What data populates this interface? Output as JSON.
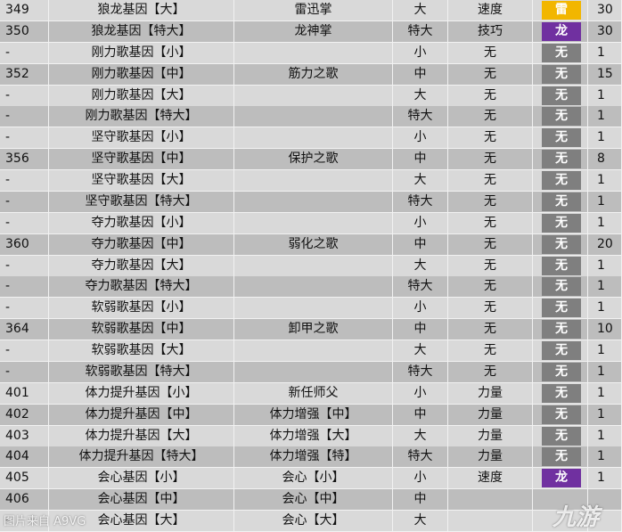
{
  "table": {
    "element_colors": {
      "雷": "#f2b600",
      "龙": "#7030a0",
      "无": "#7f7f7f"
    },
    "rows": [
      {
        "id": 349,
        "gene": "狼龙基因【大】",
        "skill": "雷迅掌",
        "size": "大",
        "type": "速度",
        "element": "雷",
        "value": 30
      },
      {
        "id": 350,
        "gene": "狼龙基因【特大】",
        "skill": "龙神掌",
        "size": "特大",
        "type": "技巧",
        "element": "龙",
        "value": 30
      },
      {
        "id": "-",
        "gene": "刚力歌基因【小】",
        "skill": null,
        "size": "小",
        "type": "无",
        "element": "无",
        "value": 1
      },
      {
        "id": 352,
        "gene": "刚力歌基因【中】",
        "skill": "筋力之歌",
        "size": "中",
        "type": "无",
        "element": "无",
        "value": 15
      },
      {
        "id": "-",
        "gene": "刚力歌基因【大】",
        "skill": null,
        "size": "大",
        "type": "无",
        "element": "无",
        "value": 1
      },
      {
        "id": "-",
        "gene": "刚力歌基因【特大】",
        "skill": null,
        "size": "特大",
        "type": "无",
        "element": "无",
        "value": 1
      },
      {
        "id": "-",
        "gene": "坚守歌基因【小】",
        "skill": null,
        "size": "小",
        "type": "无",
        "element": "无",
        "value": 1
      },
      {
        "id": 356,
        "gene": "坚守歌基因【中】",
        "skill": "保护之歌",
        "size": "中",
        "type": "无",
        "element": "无",
        "value": 8
      },
      {
        "id": "-",
        "gene": "坚守歌基因【大】",
        "skill": null,
        "size": "大",
        "type": "无",
        "element": "无",
        "value": 1
      },
      {
        "id": "-",
        "gene": "坚守歌基因【特大】",
        "skill": null,
        "size": "特大",
        "type": "无",
        "element": "无",
        "value": 1
      },
      {
        "id": "-",
        "gene": "夺力歌基因【小】",
        "skill": null,
        "size": "小",
        "type": "无",
        "element": "无",
        "value": 1
      },
      {
        "id": 360,
        "gene": "夺力歌基因【中】",
        "skill": "弱化之歌",
        "size": "中",
        "type": "无",
        "element": "无",
        "value": 20
      },
      {
        "id": "-",
        "gene": "夺力歌基因【大】",
        "skill": null,
        "size": "大",
        "type": "无",
        "element": "无",
        "value": 1
      },
      {
        "id": "-",
        "gene": "夺力歌基因【特大】",
        "skill": null,
        "size": "特大",
        "type": "无",
        "element": "无",
        "value": 1
      },
      {
        "id": "-",
        "gene": "软弱歌基因【小】",
        "skill": null,
        "size": "小",
        "type": "无",
        "element": "无",
        "value": 1
      },
      {
        "id": 364,
        "gene": "软弱歌基因【中】",
        "skill": "卸甲之歌",
        "size": "中",
        "type": "无",
        "element": "无",
        "value": 10
      },
      {
        "id": "-",
        "gene": "软弱歌基因【大】",
        "skill": null,
        "size": "大",
        "type": "无",
        "element": "无",
        "value": 1
      },
      {
        "id": "-",
        "gene": "软弱歌基因【特大】",
        "skill": null,
        "size": "特大",
        "type": "无",
        "element": "无",
        "value": 1
      },
      {
        "id": 401,
        "gene": "体力提升基因【小】",
        "skill": "新任师父",
        "size": "小",
        "type": "力量",
        "element": "无",
        "value": 1
      },
      {
        "id": 402,
        "gene": "体力提升基因【中】",
        "skill": "体力增强【中】",
        "size": "中",
        "type": "力量",
        "element": "无",
        "value": 1
      },
      {
        "id": 403,
        "gene": "体力提升基因【大】",
        "skill": "体力增强【大】",
        "size": "大",
        "type": "力量",
        "element": "无",
        "value": 1
      },
      {
        "id": 404,
        "gene": "体力提升基因【特大】",
        "skill": "体力增强【特】",
        "size": "特大",
        "type": "力量",
        "element": "无",
        "value": 1
      },
      {
        "id": 405,
        "gene": "会心基因【小】",
        "skill": "会心【小】",
        "size": "小",
        "type": "速度",
        "element": "龙",
        "value": 1
      },
      {
        "id": 406,
        "gene": "会心基因【中】",
        "skill": "会心【中】",
        "size": "中",
        "type": null,
        "element": null,
        "value": null
      },
      {
        "id": "-",
        "gene": "会心基因【大】",
        "skill": "会心【大】",
        "size": "大",
        "type": null,
        "element": null,
        "value": null
      }
    ]
  },
  "watermark": {
    "source": "图片来自 A9VG",
    "logo": "九游"
  }
}
